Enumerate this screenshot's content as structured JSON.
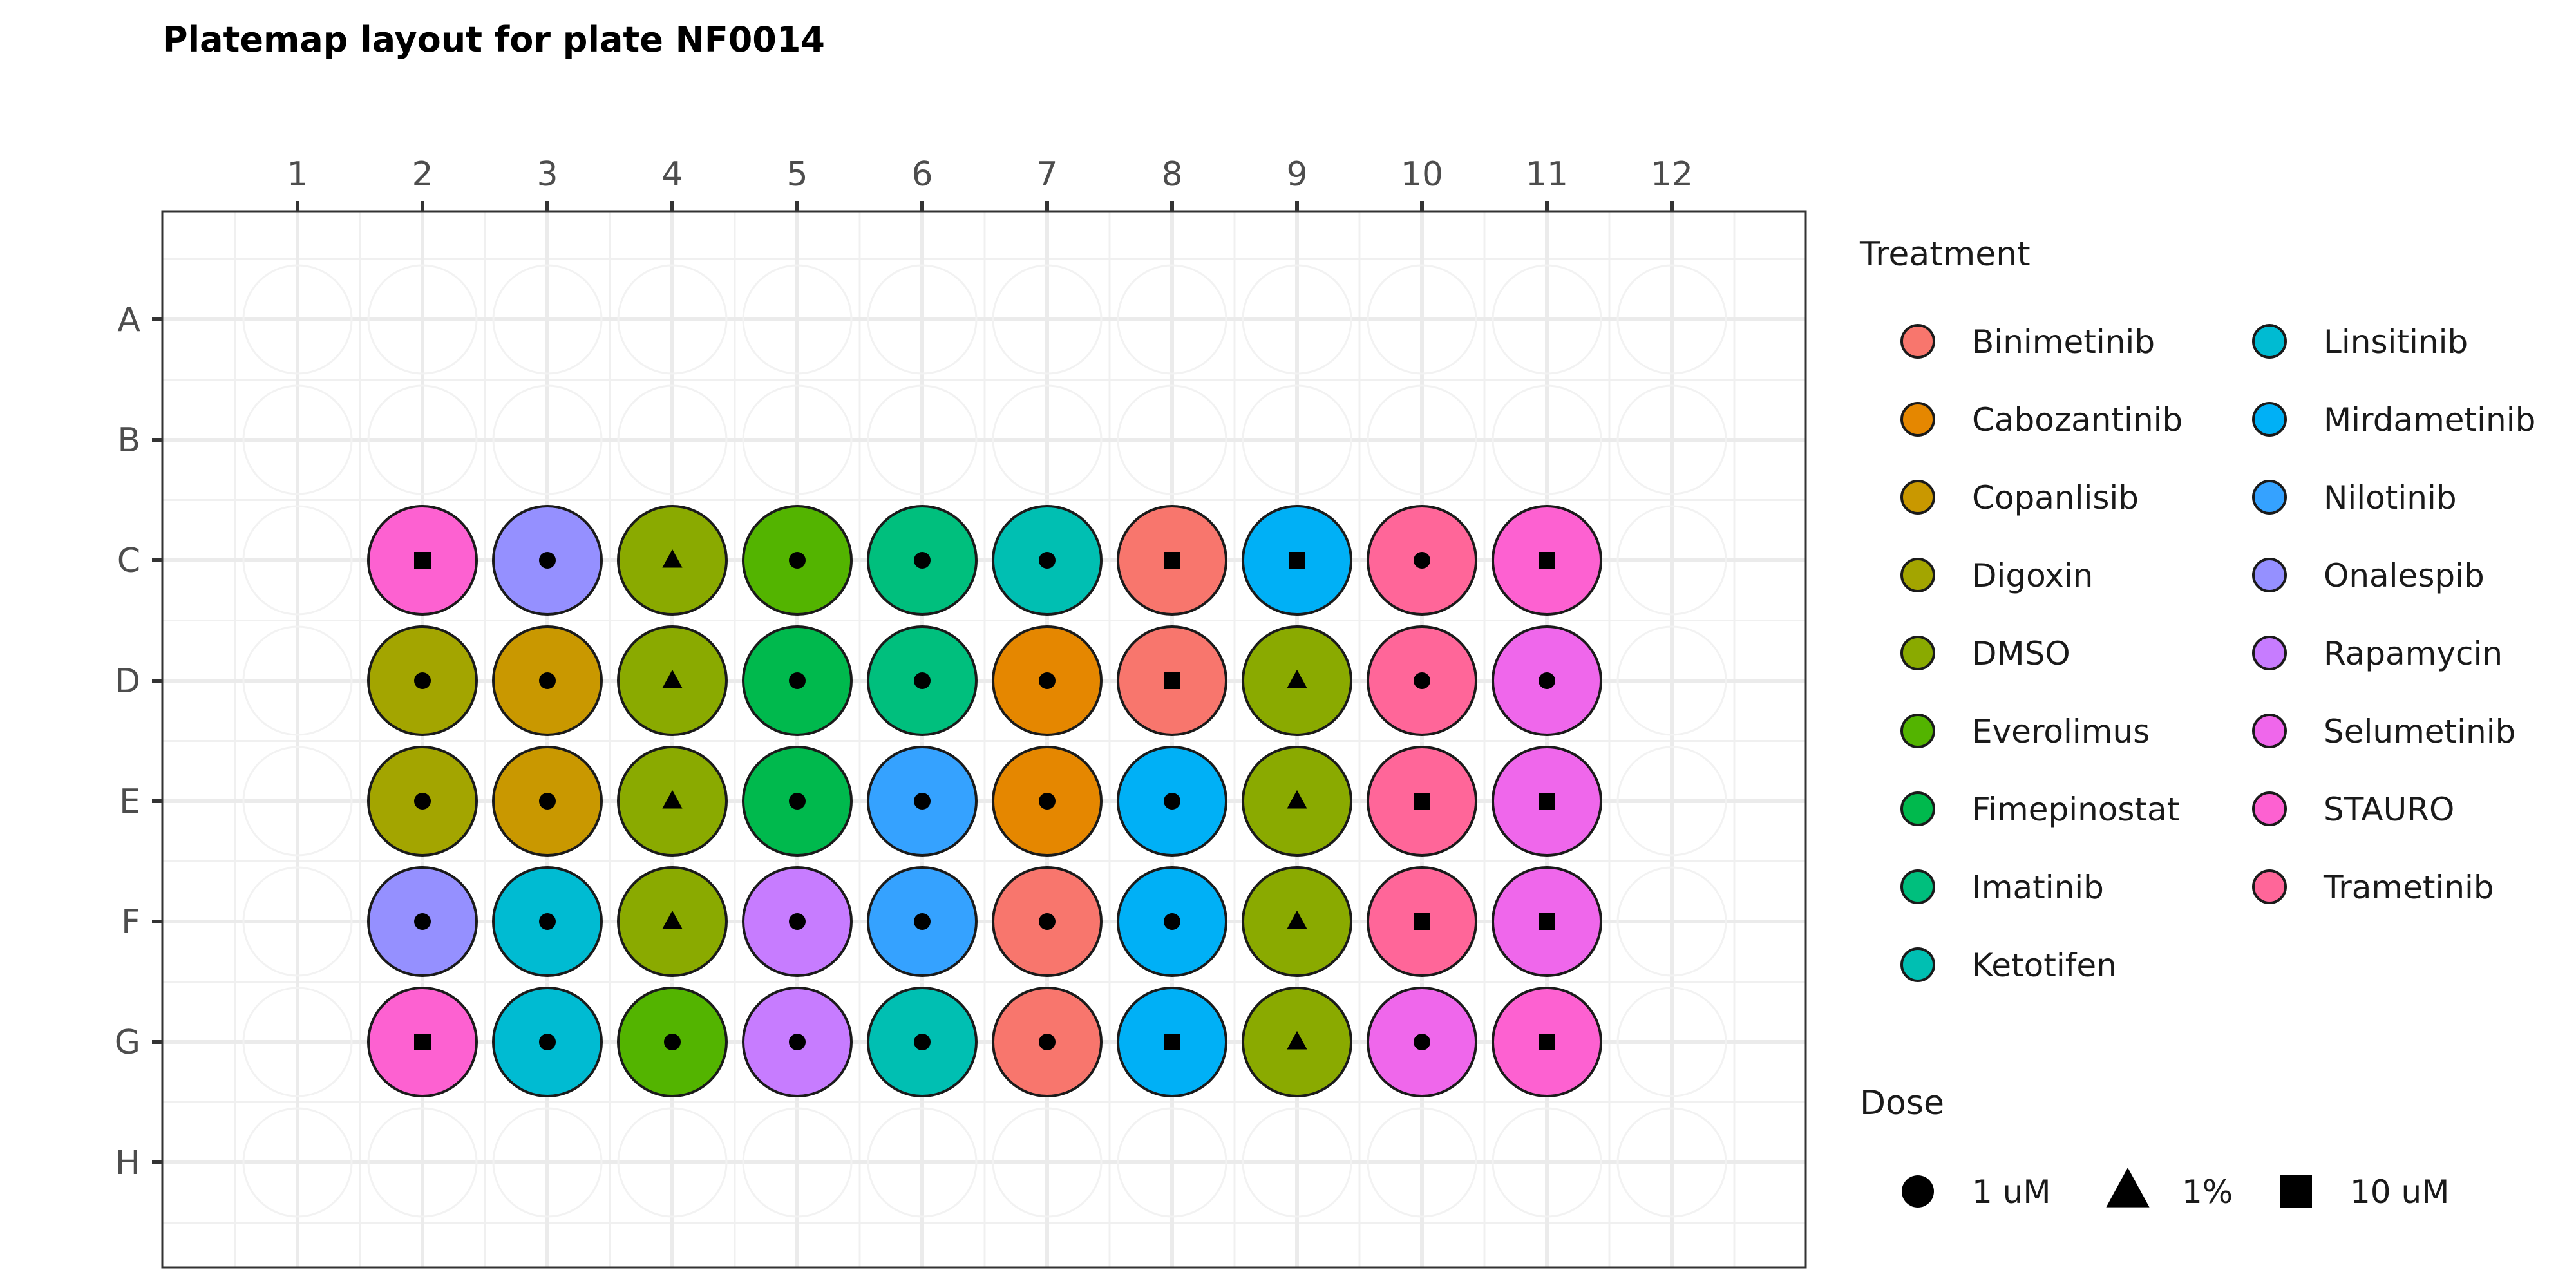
{
  "chart_data": {
    "type": "scatter",
    "title": "Platemap layout for plate NF0014",
    "columns": [
      "1",
      "2",
      "3",
      "4",
      "5",
      "6",
      "7",
      "8",
      "9",
      "10",
      "11",
      "12"
    ],
    "rows": [
      "A",
      "B",
      "C",
      "D",
      "E",
      "F",
      "G",
      "H"
    ],
    "treatment_legend_title": "Treatment",
    "dose_legend_title": "Dose",
    "treatments": [
      {
        "name": "Binimetinib",
        "color": "#F8766D"
      },
      {
        "name": "Cabozantinib",
        "color": "#E58700"
      },
      {
        "name": "Copanlisib",
        "color": "#C99800"
      },
      {
        "name": "Digoxin",
        "color": "#A3A500"
      },
      {
        "name": "DMSO",
        "color": "#8AAA00"
      },
      {
        "name": "Everolimus",
        "color": "#53B400"
      },
      {
        "name": "Fimepinostat",
        "color": "#00B94D"
      },
      {
        "name": "Imatinib",
        "color": "#00BF7D"
      },
      {
        "name": "Ketotifen",
        "color": "#00BFB2"
      },
      {
        "name": "Linsitinib",
        "color": "#00BBD2"
      },
      {
        "name": "Mirdametinib",
        "color": "#00B0F6"
      },
      {
        "name": "Nilotinib",
        "color": "#35A2FF"
      },
      {
        "name": "Onalespib",
        "color": "#9590FF"
      },
      {
        "name": "Rapamycin",
        "color": "#C77CFF"
      },
      {
        "name": "Selumetinib",
        "color": "#EF67EB"
      },
      {
        "name": "STAURO",
        "color": "#FD61D1"
      },
      {
        "name": "Trametinib",
        "color": "#FF6699"
      }
    ],
    "doses": [
      {
        "name": "1 uM",
        "shape": "circle"
      },
      {
        "name": "1%",
        "shape": "triangle"
      },
      {
        "name": "10 uM",
        "shape": "square"
      }
    ],
    "wells": [
      {
        "row": "C",
        "col": 2,
        "treatment": "STAURO",
        "dose": "10 uM"
      },
      {
        "row": "C",
        "col": 3,
        "treatment": "Onalespib",
        "dose": "1 uM"
      },
      {
        "row": "C",
        "col": 4,
        "treatment": "DMSO",
        "dose": "1%"
      },
      {
        "row": "C",
        "col": 5,
        "treatment": "Everolimus",
        "dose": "1 uM"
      },
      {
        "row": "C",
        "col": 6,
        "treatment": "Imatinib",
        "dose": "1 uM"
      },
      {
        "row": "C",
        "col": 7,
        "treatment": "Ketotifen",
        "dose": "1 uM"
      },
      {
        "row": "C",
        "col": 8,
        "treatment": "Binimetinib",
        "dose": "10 uM"
      },
      {
        "row": "C",
        "col": 9,
        "treatment": "Mirdametinib",
        "dose": "10 uM"
      },
      {
        "row": "C",
        "col": 10,
        "treatment": "Trametinib",
        "dose": "1 uM"
      },
      {
        "row": "C",
        "col": 11,
        "treatment": "STAURO",
        "dose": "10 uM"
      },
      {
        "row": "D",
        "col": 2,
        "treatment": "Digoxin",
        "dose": "1 uM"
      },
      {
        "row": "D",
        "col": 3,
        "treatment": "Copanlisib",
        "dose": "1 uM"
      },
      {
        "row": "D",
        "col": 4,
        "treatment": "DMSO",
        "dose": "1%"
      },
      {
        "row": "D",
        "col": 5,
        "treatment": "Fimepinostat",
        "dose": "1 uM"
      },
      {
        "row": "D",
        "col": 6,
        "treatment": "Imatinib",
        "dose": "1 uM"
      },
      {
        "row": "D",
        "col": 7,
        "treatment": "Cabozantinib",
        "dose": "1 uM"
      },
      {
        "row": "D",
        "col": 8,
        "treatment": "Binimetinib",
        "dose": "10 uM"
      },
      {
        "row": "D",
        "col": 9,
        "treatment": "DMSO",
        "dose": "1%"
      },
      {
        "row": "D",
        "col": 10,
        "treatment": "Trametinib",
        "dose": "1 uM"
      },
      {
        "row": "D",
        "col": 11,
        "treatment": "Selumetinib",
        "dose": "1 uM"
      },
      {
        "row": "E",
        "col": 2,
        "treatment": "Digoxin",
        "dose": "1 uM"
      },
      {
        "row": "E",
        "col": 3,
        "treatment": "Copanlisib",
        "dose": "1 uM"
      },
      {
        "row": "E",
        "col": 4,
        "treatment": "DMSO",
        "dose": "1%"
      },
      {
        "row": "E",
        "col": 5,
        "treatment": "Fimepinostat",
        "dose": "1 uM"
      },
      {
        "row": "E",
        "col": 6,
        "treatment": "Nilotinib",
        "dose": "1 uM"
      },
      {
        "row": "E",
        "col": 7,
        "treatment": "Cabozantinib",
        "dose": "1 uM"
      },
      {
        "row": "E",
        "col": 8,
        "treatment": "Mirdametinib",
        "dose": "1 uM"
      },
      {
        "row": "E",
        "col": 9,
        "treatment": "DMSO",
        "dose": "1%"
      },
      {
        "row": "E",
        "col": 10,
        "treatment": "Trametinib",
        "dose": "10 uM"
      },
      {
        "row": "E",
        "col": 11,
        "treatment": "Selumetinib",
        "dose": "10 uM"
      },
      {
        "row": "F",
        "col": 2,
        "treatment": "Onalespib",
        "dose": "1 uM"
      },
      {
        "row": "F",
        "col": 3,
        "treatment": "Linsitinib",
        "dose": "1 uM"
      },
      {
        "row": "F",
        "col": 4,
        "treatment": "DMSO",
        "dose": "1%"
      },
      {
        "row": "F",
        "col": 5,
        "treatment": "Rapamycin",
        "dose": "1 uM"
      },
      {
        "row": "F",
        "col": 6,
        "treatment": "Nilotinib",
        "dose": "1 uM"
      },
      {
        "row": "F",
        "col": 7,
        "treatment": "Binimetinib",
        "dose": "1 uM"
      },
      {
        "row": "F",
        "col": 8,
        "treatment": "Mirdametinib",
        "dose": "1 uM"
      },
      {
        "row": "F",
        "col": 9,
        "treatment": "DMSO",
        "dose": "1%"
      },
      {
        "row": "F",
        "col": 10,
        "treatment": "Trametinib",
        "dose": "10 uM"
      },
      {
        "row": "F",
        "col": 11,
        "treatment": "Selumetinib",
        "dose": "10 uM"
      },
      {
        "row": "G",
        "col": 2,
        "treatment": "STAURO",
        "dose": "10 uM"
      },
      {
        "row": "G",
        "col": 3,
        "treatment": "Linsitinib",
        "dose": "1 uM"
      },
      {
        "row": "G",
        "col": 4,
        "treatment": "Everolimus",
        "dose": "1 uM"
      },
      {
        "row": "G",
        "col": 5,
        "treatment": "Rapamycin",
        "dose": "1 uM"
      },
      {
        "row": "G",
        "col": 6,
        "treatment": "Ketotifen",
        "dose": "1 uM"
      },
      {
        "row": "G",
        "col": 7,
        "treatment": "Binimetinib",
        "dose": "1 uM"
      },
      {
        "row": "G",
        "col": 8,
        "treatment": "Mirdametinib",
        "dose": "10 uM"
      },
      {
        "row": "G",
        "col": 9,
        "treatment": "DMSO",
        "dose": "1%"
      },
      {
        "row": "G",
        "col": 10,
        "treatment": "Selumetinib",
        "dose": "1 uM"
      },
      {
        "row": "G",
        "col": 11,
        "treatment": "STAURO",
        "dose": "10 uM"
      }
    ]
  }
}
